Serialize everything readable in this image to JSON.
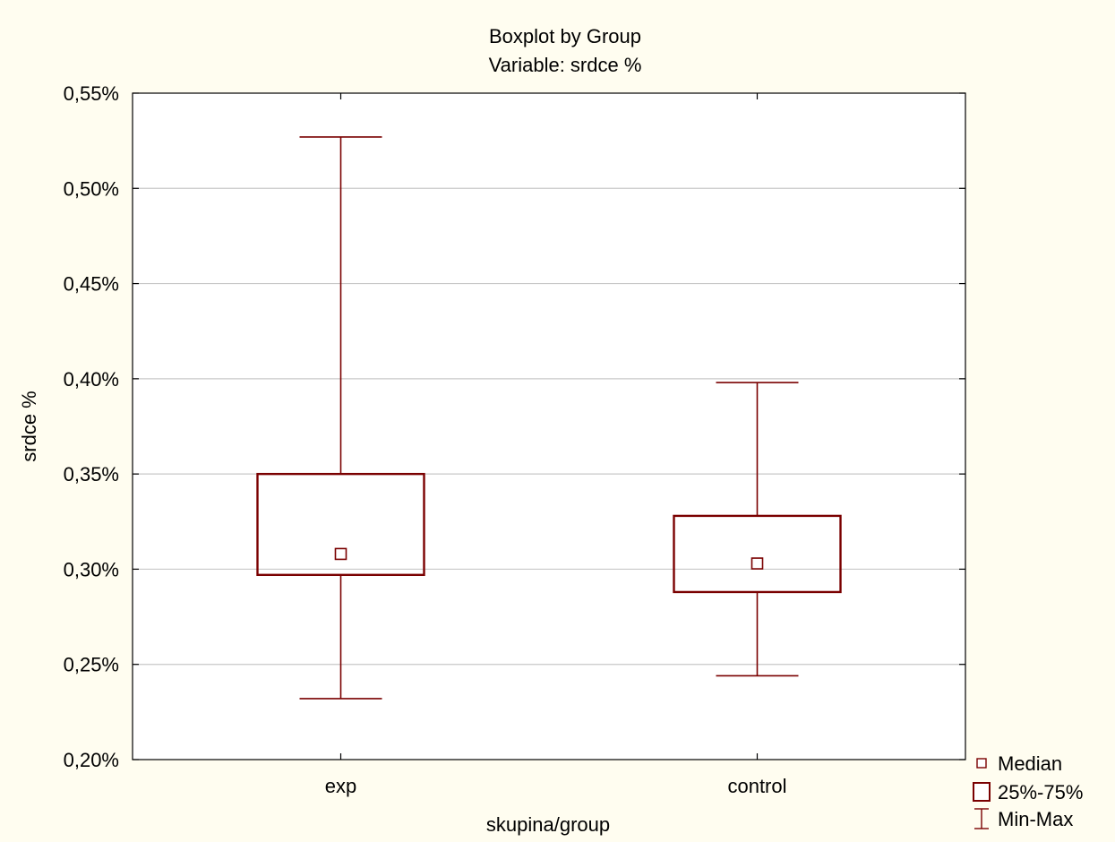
{
  "chart_data": {
    "type": "boxplot",
    "title": "Boxplot by Group",
    "subtitle": "Variable: srdce %",
    "xlabel": "skupina/group",
    "ylabel": "srdce %",
    "ylim": [
      0.2,
      0.55
    ],
    "yticks": [
      0.2,
      0.25,
      0.3,
      0.35,
      0.4,
      0.45,
      0.5,
      0.55
    ],
    "ytick_labels": [
      "0,20%",
      "0,25%",
      "0,30%",
      "0,35%",
      "0,40%",
      "0,45%",
      "0,50%",
      "0,55%"
    ],
    "grid": true,
    "categories": [
      "exp",
      "control"
    ],
    "boxes": [
      {
        "group": "exp",
        "min": 0.232,
        "q1": 0.297,
        "median": 0.308,
        "q3": 0.35,
        "max": 0.527
      },
      {
        "group": "control",
        "min": 0.244,
        "q1": 0.288,
        "median": 0.303,
        "q3": 0.328,
        "max": 0.398
      }
    ],
    "legend": {
      "placement": "bottom-right",
      "items": [
        {
          "label": "Median",
          "symbol": "small-square"
        },
        {
          "label": "25%-75%",
          "symbol": "box"
        },
        {
          "label": "Min-Max",
          "symbol": "whisker"
        }
      ]
    },
    "colors": {
      "series": "#7a0000",
      "grid": "#c8c8c8",
      "background": "#fffdf0",
      "plot_area": "#ffffff",
      "axis": "#000000"
    }
  }
}
